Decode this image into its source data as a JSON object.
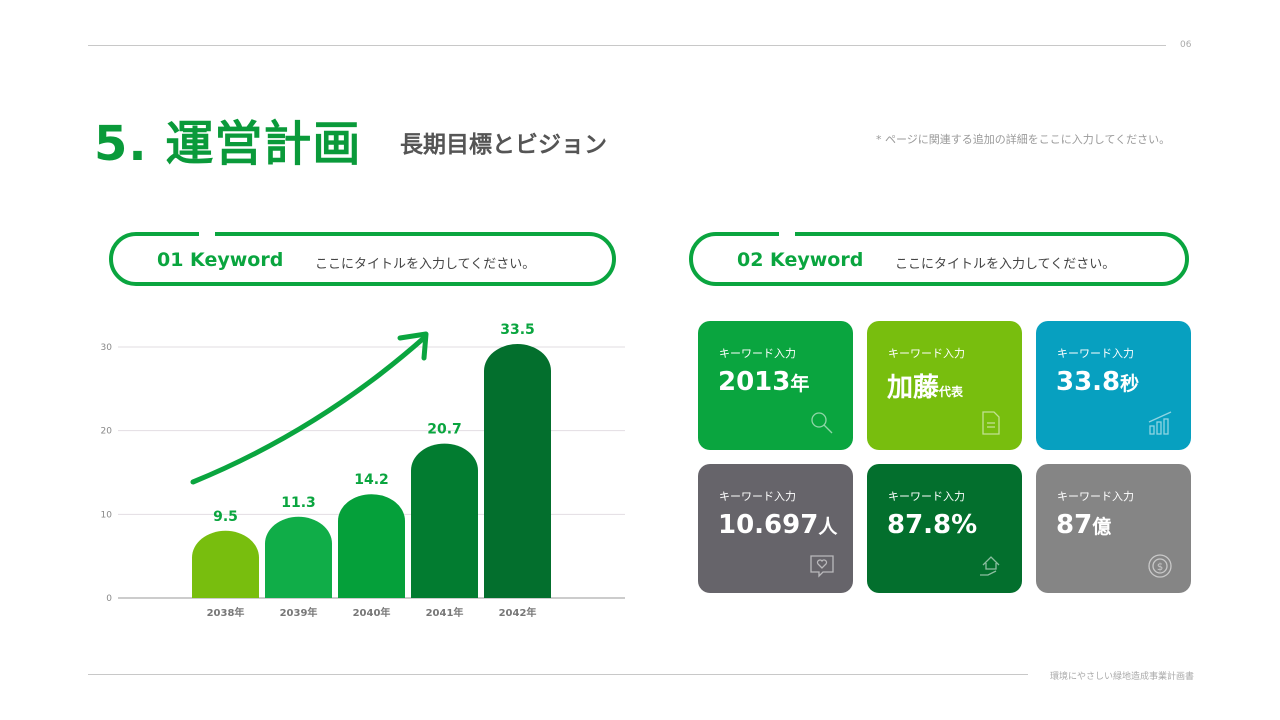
{
  "header": {
    "page_number": "06",
    "title": "5. 運営計画",
    "subtitle": "長期目標とビジョン",
    "note": "* ページに関連する追加の詳細をここに入力してください。"
  },
  "sections": [
    {
      "keyword": "01 Keyword",
      "title": "ここにタイトルを入力してください。"
    },
    {
      "keyword": "02 Keyword",
      "title": "ここにタイトルを入力してください。"
    }
  ],
  "chart_data": {
    "type": "bar",
    "categories": [
      "2038年",
      "2039年",
      "2040年",
      "2041年",
      "2042年"
    ],
    "values": [
      9.5,
      11.3,
      14.2,
      20.7,
      33.5
    ],
    "ylim": [
      0,
      30
    ],
    "yticks": [
      0,
      10,
      20,
      30
    ],
    "grid": true,
    "colors": [
      "#78be0e",
      "#10ad48",
      "#05a03a",
      "#027c30",
      "#036f2d"
    ],
    "annotation": "upward trend arrow"
  },
  "cards": [
    {
      "label": "キーワード入力",
      "value": "2013",
      "unit": "年",
      "color": "#0aa53f",
      "icon": "search-icon"
    },
    {
      "label": "キーワード入力",
      "value": "加藤",
      "unit": "代表",
      "color": "#78be0e",
      "icon": "document-icon"
    },
    {
      "label": "キーワード入力",
      "value": "33.8",
      "unit": "秒",
      "color": "#07a0c0",
      "icon": "growth-chart-icon"
    },
    {
      "label": "キーワード入力",
      "value": "10.697",
      "unit": "人",
      "color": "#66646a",
      "icon": "heart-message-icon"
    },
    {
      "label": "キーワード入力",
      "value": "87.8%",
      "unit": "",
      "color": "#036f2d",
      "icon": "house-hand-icon"
    },
    {
      "label": "キーワード入力",
      "value": "87",
      "unit": "億",
      "color": "#858585",
      "icon": "coin-icon"
    }
  ],
  "footer": {
    "text": "環境にやさしい緑地造成事業計画書"
  }
}
